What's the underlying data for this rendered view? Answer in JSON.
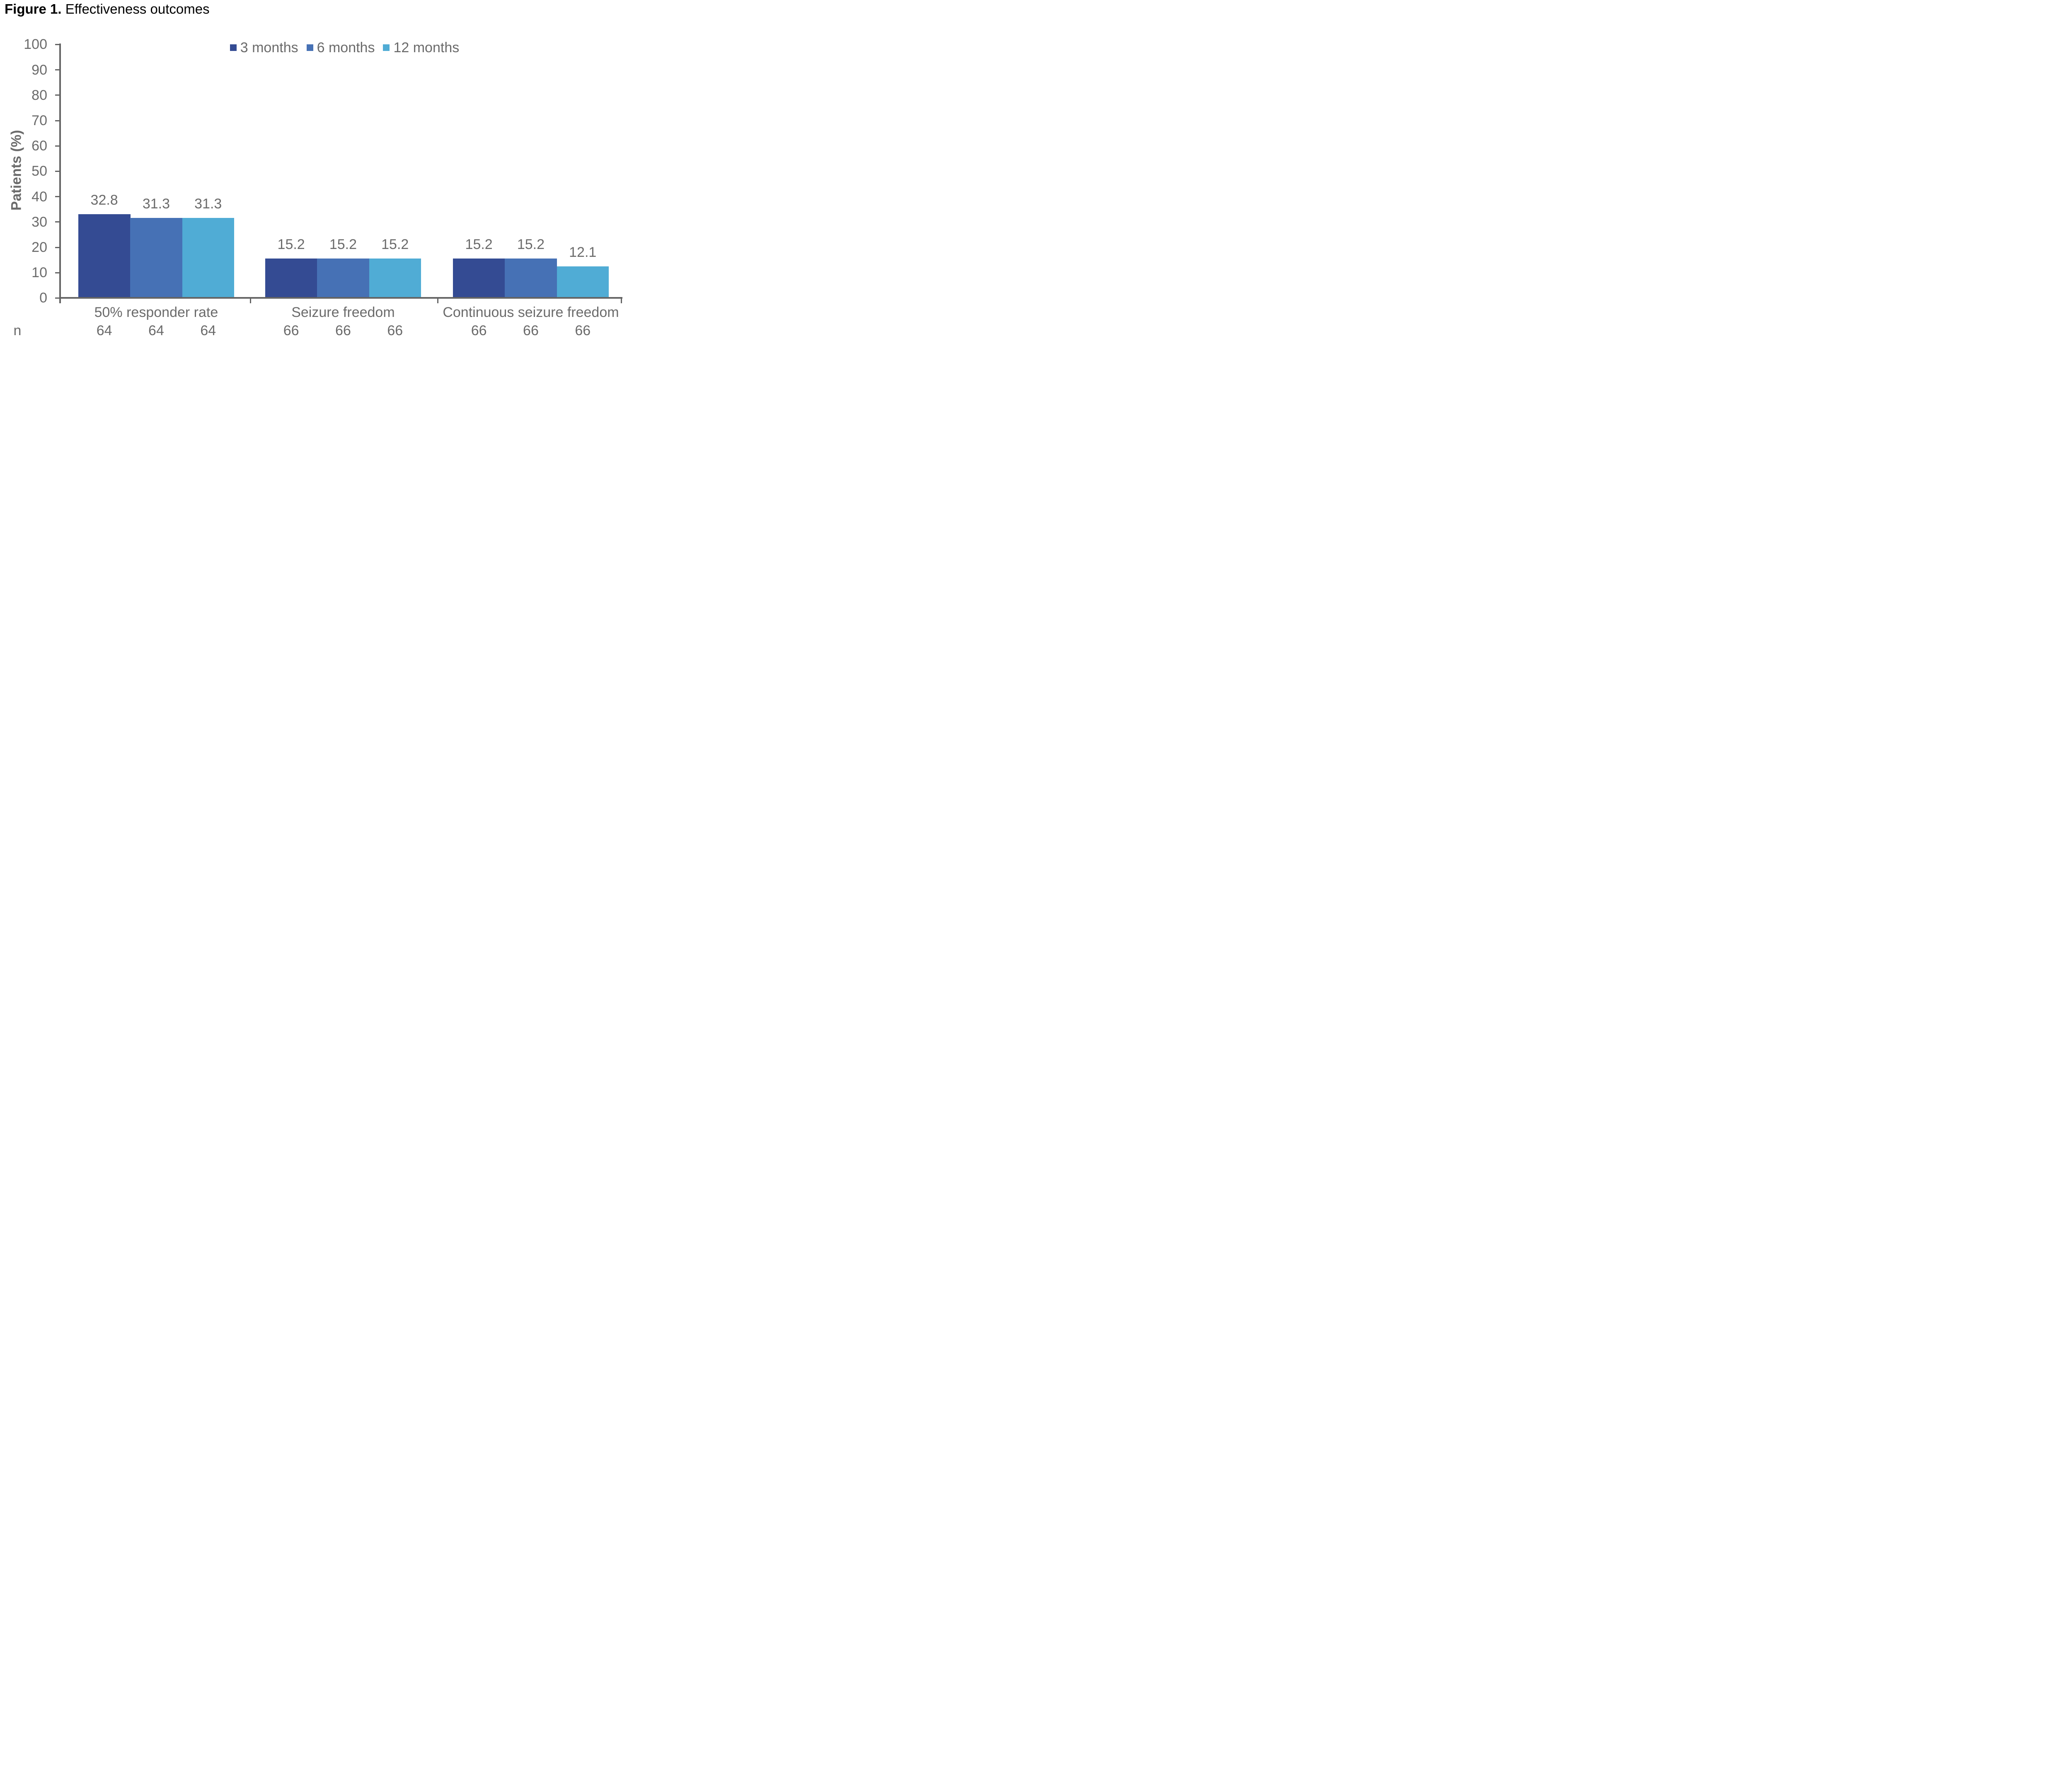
{
  "title": {
    "label": "Figure 1.",
    "text": " Effectiveness outcomes"
  },
  "colors": {
    "axis": "#646464",
    "text": "#6B6B6B",
    "title_text": "#000000"
  },
  "chart_data": {
    "type": "bar",
    "title": "Figure 1. Effectiveness outcomes",
    "categories": [
      "50% responder rate",
      "Seizure freedom",
      "Continuous seizure freedom"
    ],
    "series": [
      {
        "name": "3 months",
        "color": "#344B93",
        "values": [
          32.8,
          15.2,
          15.2
        ]
      },
      {
        "name": "6 months",
        "color": "#4671B5",
        "values": [
          31.3,
          15.2,
          15.2
        ]
      },
      {
        "name": "12 months",
        "color": "#50ACD5",
        "values": [
          31.3,
          15.2,
          12.1
        ]
      }
    ],
    "xlabel": "",
    "ylabel": "Patients (%)",
    "ylim": [
      0,
      100
    ],
    "yticks": [
      0,
      10,
      20,
      30,
      40,
      50,
      60,
      70,
      80,
      90,
      100
    ],
    "grid": false,
    "legend_position": "top-center",
    "value_labels_decimals": 1,
    "n_row": {
      "label": "n",
      "values": [
        [
          64,
          64,
          64
        ],
        [
          66,
          66,
          66
        ],
        [
          66,
          66,
          66
        ]
      ]
    }
  }
}
